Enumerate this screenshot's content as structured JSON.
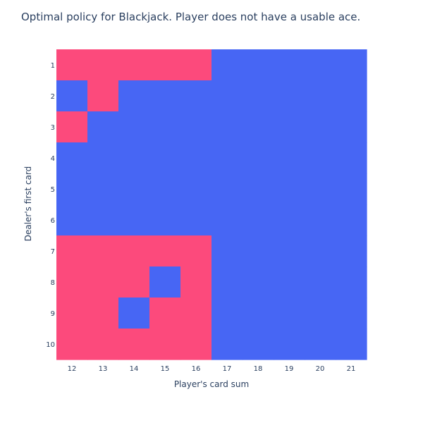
{
  "chart_data": {
    "type": "heatmap",
    "title": "Optimal policy for Blackjack. Player does not have a usable ace.",
    "xlabel": "Player's card sum",
    "ylabel": "Dealer's first card",
    "x": [
      12,
      13,
      14,
      15,
      16,
      17,
      18,
      19,
      20,
      21
    ],
    "y": [
      1,
      2,
      3,
      4,
      5,
      6,
      7,
      8,
      9,
      10
    ],
    "z": [
      [
        1,
        1,
        1,
        1,
        1,
        0,
        0,
        0,
        0,
        0
      ],
      [
        0,
        1,
        0,
        0,
        0,
        0,
        0,
        0,
        0,
        0
      ],
      [
        1,
        0,
        0,
        0,
        0,
        0,
        0,
        0,
        0,
        0
      ],
      [
        0,
        0,
        0,
        0,
        0,
        0,
        0,
        0,
        0,
        0
      ],
      [
        0,
        0,
        0,
        0,
        0,
        0,
        0,
        0,
        0,
        0
      ],
      [
        0,
        0,
        0,
        0,
        0,
        0,
        0,
        0,
        0,
        0
      ],
      [
        1,
        1,
        1,
        1,
        1,
        0,
        0,
        0,
        0,
        0
      ],
      [
        1,
        1,
        1,
        0,
        1,
        0,
        0,
        0,
        0,
        0
      ],
      [
        1,
        1,
        0,
        1,
        1,
        0,
        0,
        0,
        0,
        0
      ],
      [
        1,
        1,
        1,
        1,
        1,
        0,
        0,
        0,
        0,
        0
      ]
    ],
    "colors": {
      "0": "#4766f4",
      "1": "#fc4a7c"
    },
    "legend": false,
    "grid": false
  }
}
